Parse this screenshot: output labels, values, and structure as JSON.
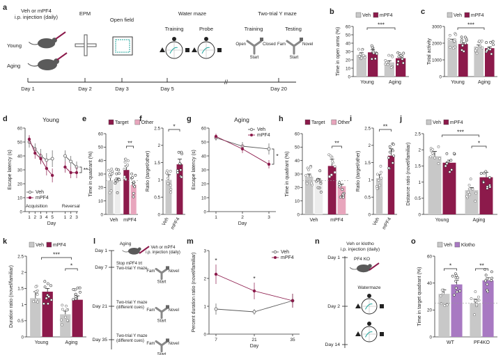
{
  "colors": {
    "veh": "#c8c8c8",
    "mpf4": "#8c1a4b",
    "other": "#e8a6bd",
    "klotho": "#a879c2",
    "axis": "#333333",
    "dashed": "#999999",
    "icon": "#5a5a5a",
    "accent": "#1aa39a"
  },
  "schematic_a": {
    "panel": "a",
    "injection": [
      "Veh or mPF4",
      "i.p. injection (daily)"
    ],
    "groups": [
      "Young",
      "Aging"
    ],
    "tests": {
      "epm": "EPM",
      "open_field": "Open field",
      "water_maze": "Water maze",
      "y_maze": "Two-trial Y maze"
    },
    "phases": {
      "training": "Training",
      "probe": "Probe",
      "ytraining": "Training",
      "ytesting": "Testing"
    },
    "arm_labels": {
      "open": "Open",
      "closed": "Closed",
      "start": "Start",
      "fam": "Fam",
      "novel": "Novel"
    },
    "days": [
      "Day 1",
      "Day 2",
      "Day 3",
      "Day 5",
      "Day 20"
    ]
  },
  "schematic_l": {
    "panel": "l",
    "aging": "Aging",
    "injection": [
      "Veh or mPF4",
      "i.p. injection (daily)"
    ],
    "steps": [
      {
        "day": "Day 1",
        "text": []
      },
      {
        "day": "Day 7",
        "text": [
          "Stop mPF4 trt",
          "Two-trial Y maze"
        ]
      },
      {
        "day": "Day 21",
        "text": [
          "Two-trial Y maze",
          "(different cues)"
        ]
      },
      {
        "day": "Day 35",
        "text": [
          "Two-trial Y maze",
          "(different cues)"
        ]
      }
    ],
    "arm_labels": {
      "fam": "Fam",
      "novel": "Novel",
      "start": "Start"
    }
  },
  "schematic_n": {
    "panel": "n",
    "injection": [
      "Veh or klotho",
      "i.p. injection (daily)"
    ],
    "strain": "PF4 KO",
    "watermaze": "Watermaze",
    "days": [
      "Day 1",
      "Day 2",
      "Day 14"
    ]
  },
  "chart_data": [
    {
      "panel": "b",
      "type": "bar",
      "ylabel": "Time in open arms (%)",
      "ylim": [
        0,
        60
      ],
      "yticks": [
        0,
        10,
        20,
        30,
        40,
        50,
        60
      ],
      "categories": [
        "Young",
        "Aging"
      ],
      "legend": [
        "Veh",
        "mPF4"
      ],
      "series": [
        {
          "name": "Veh",
          "values": [
            26,
            17
          ],
          "sem": [
            2.5,
            2
          ]
        },
        {
          "name": "mPF4",
          "values": [
            29,
            22
          ],
          "sem": [
            3,
            3
          ]
        }
      ],
      "significance": [
        {
          "label": "***",
          "span": "Young-Aging"
        }
      ]
    },
    {
      "panel": "c",
      "type": "bar",
      "ylabel": "Total activity",
      "ylim": [
        0,
        3000
      ],
      "yticks": [
        0,
        1000,
        2000,
        3000
      ],
      "categories": [
        "Young",
        "Aging"
      ],
      "legend": [
        "Veh",
        "mPF4"
      ],
      "series": [
        {
          "name": "Veh",
          "values": [
            2150,
            1800
          ],
          "sem": [
            90,
            90
          ]
        },
        {
          "name": "mPF4",
          "values": [
            1950,
            1700
          ],
          "sem": [
            80,
            80
          ]
        }
      ],
      "significance": [
        {
          "label": "***",
          "span": "Young-Aging"
        }
      ]
    },
    {
      "panel": "d",
      "type": "line",
      "title": "Young",
      "ylabel": "Escape latency (s)",
      "xlabel": "Day",
      "ylim": [
        0,
        60
      ],
      "yticks": [
        0,
        10,
        20,
        30,
        40,
        50,
        60
      ],
      "x": [
        "1",
        "2",
        "3",
        "4",
        "5",
        "1",
        "2",
        "3"
      ],
      "phases": [
        "Acquisition",
        "Reversal"
      ],
      "legend": [
        "Veh",
        "mPF4"
      ],
      "series": [
        {
          "name": "Veh",
          "values": [
            50,
            45,
            40,
            37,
            38,
            40,
            36,
            32
          ],
          "sem": [
            4,
            4,
            5,
            5,
            6,
            4,
            4,
            4
          ]
        },
        {
          "name": "mPF4",
          "values": [
            52,
            42,
            38,
            31,
            26,
            32,
            28,
            28
          ],
          "sem": [
            3,
            4,
            4,
            5,
            5,
            4,
            4,
            4
          ]
        }
      ],
      "significance": [
        {
          "label": "**",
          "span": "Reversal"
        }
      ]
    },
    {
      "panel": "e",
      "type": "bar",
      "ylabel": "Time in quadrant (%)",
      "ylim": [
        0,
        60
      ],
      "yticks": [
        0,
        10,
        20,
        30,
        40,
        50,
        60
      ],
      "categories": [
        "Veh",
        "mPF4"
      ],
      "legend": [
        "Target",
        "Other"
      ],
      "series": [
        {
          "name": "Target",
          "values": [
            25,
            33
          ],
          "sem": [
            4,
            3
          ]
        },
        {
          "name": "Other",
          "values": [
            25,
            22
          ],
          "sem": [
            2,
            1.5
          ]
        }
      ],
      "significance": [
        {
          "label": "**",
          "span": "mPF4"
        }
      ]
    },
    {
      "panel": "f",
      "type": "bar",
      "ylabel": "Ratio (target/other)",
      "ylim": [
        0,
        2.5
      ],
      "yticks": [
        0,
        0.5,
        1.0,
        1.5,
        2.0,
        2.5
      ],
      "categories": [
        "Veh",
        "mPF4"
      ],
      "series": [
        {
          "name": "Ratio",
          "values": [
            1.0,
            1.45
          ],
          "sem": [
            0.15,
            0.15
          ]
        }
      ],
      "significance": [
        {
          "label": "*",
          "span": "Veh-mPF4"
        }
      ]
    },
    {
      "panel": "g",
      "type": "line",
      "title": "Aging",
      "ylabel": "Escape latency (s)",
      "xlabel": "Day",
      "ylim": [
        0,
        60
      ],
      "yticks": [
        0,
        10,
        20,
        30,
        40,
        50,
        60
      ],
      "x": [
        "1",
        "2",
        "3"
      ],
      "legend": [
        "Veh",
        "mPF4"
      ],
      "series": [
        {
          "name": "Veh",
          "values": [
            53,
            47,
            45
          ],
          "sem": [
            2,
            3,
            4
          ]
        },
        {
          "name": "mPF4",
          "values": [
            54,
            45,
            34
          ],
          "sem": [
            2,
            3,
            3
          ]
        }
      ],
      "significance": [
        {
          "label": "*",
          "span": "Day 3"
        }
      ]
    },
    {
      "panel": "h",
      "type": "bar",
      "ylabel": "Time in quadrant (%)",
      "ylim": [
        0,
        60
      ],
      "yticks": [
        0,
        10,
        20,
        30,
        40,
        50,
        60
      ],
      "categories": [
        "Veh",
        "mPF4"
      ],
      "legend": [
        "Target",
        "Other"
      ],
      "series": [
        {
          "name": "Target",
          "values": [
            28,
            36
          ],
          "sem": [
            2,
            5
          ]
        },
        {
          "name": "Other",
          "values": [
            25,
            21
          ],
          "sem": [
            1.5,
            1.5
          ]
        }
      ],
      "significance": [
        {
          "label": "**",
          "span": "mPF4"
        }
      ]
    },
    {
      "panel": "i",
      "type": "bar",
      "ylabel": "Ratio (target/other)",
      "ylim": [
        0,
        2.5
      ],
      "yticks": [
        0,
        0.5,
        1.0,
        1.5,
        2.0,
        2.5
      ],
      "categories": [
        "Veh",
        "mPF4"
      ],
      "series": [
        {
          "name": "Ratio",
          "values": [
            1.05,
            1.7
          ],
          "sem": [
            0.1,
            0.2
          ]
        }
      ],
      "significance": [
        {
          "label": "**",
          "span": "Veh-mPF4"
        }
      ]
    },
    {
      "panel": "j",
      "type": "bar",
      "ylabel": "Distance ratio (novel/familiar)",
      "ylim": [
        0,
        2.5
      ],
      "yticks": [
        0,
        0.5,
        1.0,
        1.5,
        2.0,
        2.5
      ],
      "categories": [
        "Young",
        "Aging"
      ],
      "legend": [
        "Veh",
        "mPF4"
      ],
      "series": [
        {
          "name": "Veh",
          "values": [
            1.8,
            0.75
          ],
          "sem": [
            0.15,
            0.08
          ]
        },
        {
          "name": "mPF4",
          "values": [
            1.6,
            1.15
          ],
          "sem": [
            0.08,
            0.15
          ]
        }
      ],
      "significance": [
        {
          "label": "***",
          "span": "Young-Aging"
        },
        {
          "label": "*",
          "span": "Aging"
        }
      ]
    },
    {
      "panel": "k",
      "type": "bar",
      "ylabel": "Duration ratio (novel/familiar)",
      "ylim": [
        0,
        2.5
      ],
      "yticks": [
        0,
        0.5,
        1.0,
        1.5,
        2.0,
        2.5
      ],
      "categories": [
        "Young",
        "Aging"
      ],
      "legend": [
        "Veh",
        "mPF4"
      ],
      "series": [
        {
          "name": "Veh",
          "values": [
            1.2,
            0.7
          ],
          "sem": [
            0.2,
            0.1
          ]
        },
        {
          "name": "mPF4",
          "values": [
            1.4,
            1.15
          ],
          "sem": [
            0.1,
            0.12
          ]
        }
      ],
      "significance": [
        {
          "label": "***",
          "span": "Young-Aging"
        },
        {
          "label": "*",
          "span": "Aging"
        }
      ]
    },
    {
      "panel": "m",
      "type": "line",
      "ylabel": "Percent duration ratio (novel/familiar)",
      "xlabel": "Day",
      "ylim": [
        0,
        3
      ],
      "yticks": [
        0,
        1,
        2,
        3
      ],
      "x": [
        "7",
        "21",
        "35"
      ],
      "legend": [
        "Veh",
        "mPF4"
      ],
      "series": [
        {
          "name": "Veh",
          "values": [
            0.9,
            0.8,
            1.2
          ],
          "sem": [
            0.2,
            0.1,
            0.25
          ]
        },
        {
          "name": "mPF4",
          "values": [
            2.15,
            1.55,
            1.2
          ],
          "sem": [
            0.35,
            0.3,
            0.25
          ]
        }
      ],
      "significance": [
        {
          "label": "*",
          "span": "Day 7"
        },
        {
          "label": "*",
          "span": "Day 21"
        }
      ]
    },
    {
      "panel": "o",
      "type": "bar",
      "ylabel": "Time in target quadrant (%)",
      "ylim": [
        0,
        60
      ],
      "yticks": [
        0,
        20,
        40,
        60
      ],
      "categories": [
        "WT",
        "PF4KO"
      ],
      "legend": [
        "Veh",
        "Klotho"
      ],
      "series": [
        {
          "name": "Veh",
          "values": [
            32,
            25
          ],
          "sem": [
            3,
            3
          ]
        },
        {
          "name": "Klotho",
          "values": [
            39,
            42
          ],
          "sem": [
            3,
            2
          ]
        }
      ],
      "significance": [
        {
          "label": "*",
          "span": "WT"
        },
        {
          "label": "**",
          "span": "PF4KO"
        }
      ]
    }
  ]
}
